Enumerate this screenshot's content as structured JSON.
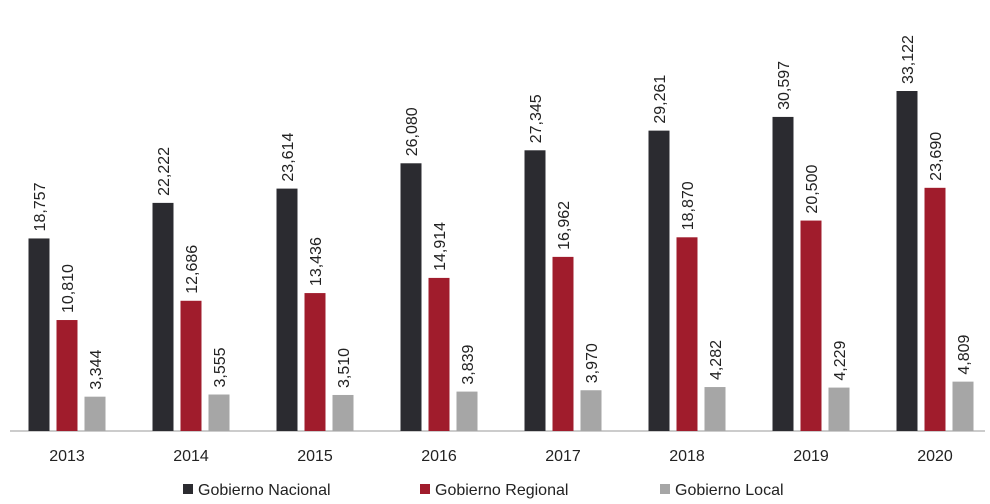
{
  "chart_data": {
    "type": "bar",
    "categories": [
      "2013",
      "2014",
      "2015",
      "2016",
      "2017",
      "2018",
      "2019",
      "2020"
    ],
    "series": [
      {
        "name": "Gobierno Nacional",
        "color": "#2b2b30",
        "values": [
          18757,
          22222,
          23614,
          26080,
          27345,
          29261,
          30597,
          33122
        ],
        "value_labels": [
          "18,757",
          "22,222",
          "23,614",
          "26,080",
          "27,345",
          "29,261",
          "30,597",
          "33,122"
        ]
      },
      {
        "name": "Gobierno Regional",
        "color": "#a01c2c",
        "values": [
          10810,
          12686,
          13436,
          14914,
          16962,
          18870,
          20500,
          23690
        ],
        "value_labels": [
          "10,810",
          "12,686",
          "13,436",
          "14,914",
          "16,962",
          "18,870",
          "20,500",
          "23,690"
        ]
      },
      {
        "name": "Gobierno Local",
        "color": "#a6a6a6",
        "values": [
          3344,
          3555,
          3510,
          3839,
          3970,
          4282,
          4229,
          4809
        ],
        "value_labels": [
          "3,344",
          "3,555",
          "3,510",
          "3,839",
          "3,970",
          "4,282",
          "4,229",
          "4,809"
        ]
      }
    ],
    "legend": "bottom"
  }
}
